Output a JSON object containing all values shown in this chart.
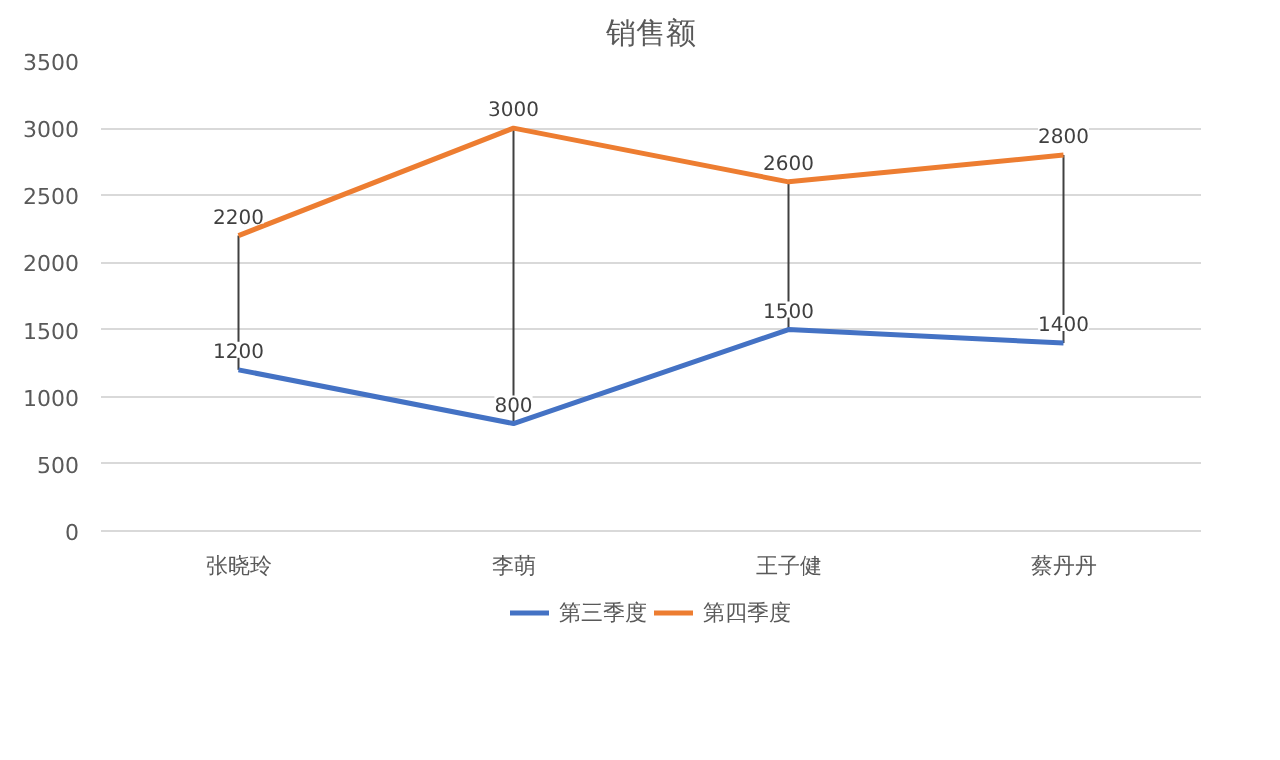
{
  "chart_data": {
    "type": "line",
    "title": "销售额",
    "categories": [
      "张晓玲",
      "李萌",
      "王子健",
      "蔡丹丹"
    ],
    "series": [
      {
        "name": "第三季度",
        "color": "#4472c4",
        "values": [
          1200,
          800,
          1500,
          1400
        ]
      },
      {
        "name": "第四季度",
        "color": "#ed7d31",
        "values": [
          2200,
          3000,
          2600,
          2800
        ]
      }
    ],
    "ylim": [
      0,
      3500
    ],
    "yticks": [
      0,
      500,
      1000,
      1500,
      2000,
      2500,
      3000,
      3500
    ],
    "grid": "y",
    "legend": "bottom",
    "data_labels": true,
    "marker": "none",
    "line_style": "solid"
  }
}
